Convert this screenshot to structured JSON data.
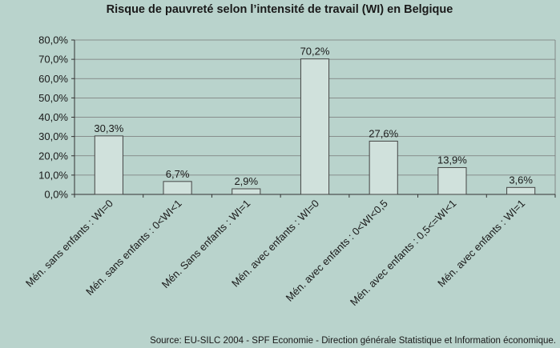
{
  "chart_data": {
    "type": "bar",
    "title": "Risque de pauvreté selon l’intensité de travail (WI) en Belgique",
    "categories": [
      "Mén. sans enfants : WI=0",
      "Mén. sans enfants : 0<WI<1",
      "Mén. Sans enfants : WI=1",
      "Mén. avec enfants : WI=0",
      "Mén. avec enfants : 0<WI<0,5",
      "Mén. avec enfants : 0,5<=WI<1",
      "Mén. avec enfants : WI=1"
    ],
    "values": [
      30.3,
      6.7,
      2.9,
      70.2,
      27.6,
      13.9,
      3.6
    ],
    "value_labels": [
      "30,3%",
      "6,7%",
      "2,9%",
      "70,2%",
      "27,6%",
      "13,9%",
      "3,6%"
    ],
    "ylim": [
      0,
      80
    ],
    "yticks": [
      0,
      10,
      20,
      30,
      40,
      50,
      60,
      70,
      80
    ],
    "ytick_labels": [
      "0,0%",
      "10,0%",
      "20,0%",
      "30,0%",
      "40,0%",
      "50,0%",
      "60,0%",
      "70,0%",
      "80,0%"
    ],
    "grid": true,
    "legend": "none",
    "xlabel": "",
    "ylabel": "",
    "source": "Source: EU-SILC 2004 - SPF Economie - Direction générale Statistique et Information économique.",
    "colors": {
      "background": "#b9d3cc",
      "bar_fill": "#d0e1dc",
      "bar_stroke": "#444444",
      "grid": "#777777"
    }
  }
}
